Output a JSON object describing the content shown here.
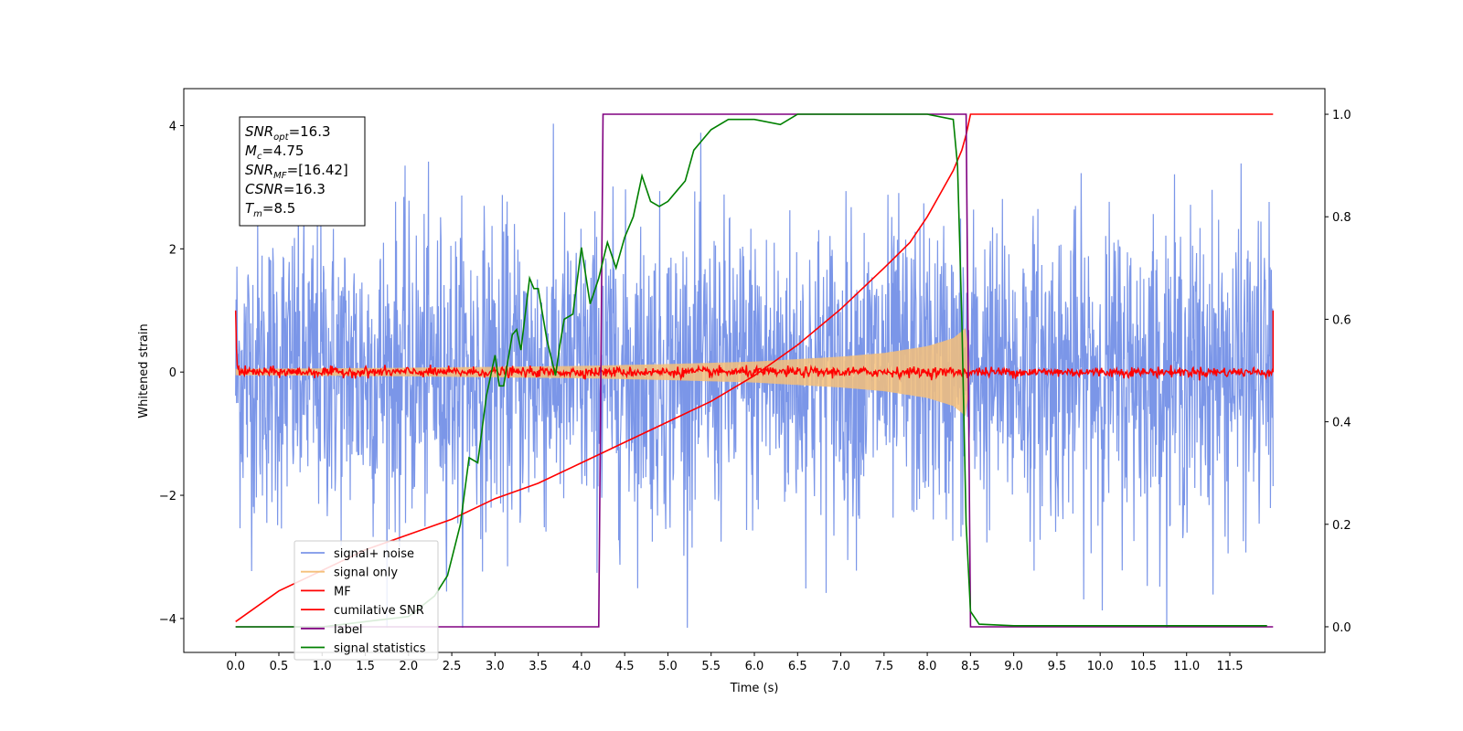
{
  "chart_data": {
    "type": "line",
    "xlabel": "Time (s)",
    "ylabel": "Whitened strain",
    "xlim": [
      -0.6,
      12.6
    ],
    "ylim": [
      -4.55,
      4.6
    ],
    "y2lim": [
      -0.05,
      1.05
    ],
    "xticks": [
      0.0,
      0.5,
      1.0,
      1.5,
      2.0,
      2.5,
      3.0,
      3.5,
      4.0,
      4.5,
      5.0,
      5.5,
      6.0,
      6.5,
      7.0,
      7.5,
      8.0,
      8.5,
      9.0,
      9.5,
      10.0,
      10.5,
      11.0,
      11.5
    ],
    "yticks": [
      -4,
      -2,
      0,
      2,
      4
    ],
    "y2ticks": [
      0.0,
      0.2,
      0.4,
      0.6,
      0.8,
      1.0
    ],
    "grid": false,
    "legend": {
      "location": "lower-left",
      "entries": [
        {
          "label": "signal+ noise",
          "color": "#7b96e8"
        },
        {
          "label": "signal only",
          "color": "#f5c07a"
        },
        {
          "label": "MF",
          "color": "#ff0000"
        },
        {
          "label": "cumilative SNR",
          "color": "#ff0000"
        },
        {
          "label": "label",
          "color": "#800080"
        },
        {
          "label": "signal statistics",
          "color": "#008000"
        }
      ]
    },
    "info_box": {
      "lines": [
        {
          "base": "SNR",
          "sub": "opt",
          "value": "=16.3"
        },
        {
          "base": "M",
          "sub": "c",
          "value": "=4.75"
        },
        {
          "base": "SNR",
          "sub": "MF",
          "value": "=[16.42]"
        },
        {
          "base": "CSNR",
          "sub": "",
          "value": "=16.3"
        },
        {
          "base": "T",
          "sub": "m",
          "value": "=8.5"
        }
      ]
    },
    "series": [
      {
        "name": "signal+ noise",
        "axis": "left",
        "color": "#7b96e8",
        "style": "noise",
        "x_range": [
          0.0,
          12.0
        ],
        "typical_range": [
          -1.6,
          1.6
        ],
        "extreme_range": [
          -4.15,
          4.15
        ]
      },
      {
        "name": "signal only",
        "axis": "left",
        "color": "#f5c07a",
        "style": "chirp-envelope",
        "x_range": [
          0.0,
          8.5
        ],
        "envelope": {
          "x": [
            0.0,
            2.0,
            4.0,
            5.0,
            6.0,
            7.0,
            7.5,
            8.0,
            8.3,
            8.45,
            8.5
          ],
          "amp": [
            0.05,
            0.07,
            0.1,
            0.13,
            0.17,
            0.25,
            0.31,
            0.42,
            0.55,
            0.72,
            0.0
          ]
        }
      },
      {
        "name": "MF",
        "axis": "left",
        "color": "#ff0000",
        "style": "noise",
        "x_range": [
          0.0,
          12.0
        ],
        "typical_range": [
          -0.1,
          0.1
        ],
        "endpoints": [
          1.0,
          1.0
        ]
      },
      {
        "name": "cumilative SNR",
        "axis": "right",
        "color": "#ff0000",
        "x": [
          0.0,
          0.5,
          1.0,
          1.5,
          2.0,
          2.5,
          3.0,
          3.5,
          4.0,
          4.5,
          5.0,
          5.5,
          6.0,
          6.5,
          7.0,
          7.5,
          7.8,
          8.0,
          8.2,
          8.3,
          8.4,
          8.45,
          8.5,
          12.0
        ],
        "y": [
          0.01,
          0.07,
          0.11,
          0.15,
          0.18,
          0.21,
          0.25,
          0.28,
          0.32,
          0.36,
          0.4,
          0.44,
          0.49,
          0.55,
          0.62,
          0.7,
          0.75,
          0.8,
          0.86,
          0.89,
          0.93,
          0.96,
          1.0,
          1.0
        ]
      },
      {
        "name": "label",
        "axis": "right",
        "color": "#800080",
        "x": [
          0.0,
          4.2,
          4.25,
          8.45,
          8.5,
          12.0
        ],
        "y": [
          0.0,
          0.0,
          1.0,
          1.0,
          0.0,
          0.0
        ]
      },
      {
        "name": "signal statistics",
        "axis": "right",
        "color": "#008000",
        "x": [
          0.0,
          1.0,
          1.5,
          2.0,
          2.3,
          2.45,
          2.6,
          2.7,
          2.8,
          2.9,
          3.0,
          3.05,
          3.1,
          3.2,
          3.25,
          3.3,
          3.4,
          3.45,
          3.5,
          3.6,
          3.7,
          3.75,
          3.8,
          3.9,
          4.0,
          4.1,
          4.2,
          4.3,
          4.4,
          4.5,
          4.6,
          4.7,
          4.8,
          4.9,
          5.0,
          5.1,
          5.2,
          5.3,
          5.5,
          5.7,
          6.0,
          6.3,
          6.5,
          6.8,
          7.0,
          7.5,
          8.0,
          8.3,
          8.35,
          8.4,
          8.45,
          8.5,
          8.6,
          9.0,
          10.0,
          11.0,
          11.93
        ],
        "y": [
          0.0,
          0.0,
          0.01,
          0.02,
          0.06,
          0.1,
          0.2,
          0.33,
          0.32,
          0.45,
          0.53,
          0.47,
          0.47,
          0.57,
          0.58,
          0.54,
          0.68,
          0.66,
          0.66,
          0.56,
          0.49,
          0.55,
          0.6,
          0.61,
          0.74,
          0.63,
          0.68,
          0.75,
          0.7,
          0.76,
          0.8,
          0.88,
          0.83,
          0.82,
          0.83,
          0.85,
          0.87,
          0.93,
          0.97,
          0.99,
          0.99,
          0.98,
          1.0,
          1.0,
          1.0,
          1.0,
          1.0,
          0.99,
          0.9,
          0.6,
          0.2,
          0.03,
          0.005,
          0.002,
          0.002,
          0.002,
          0.002
        ]
      }
    ]
  }
}
